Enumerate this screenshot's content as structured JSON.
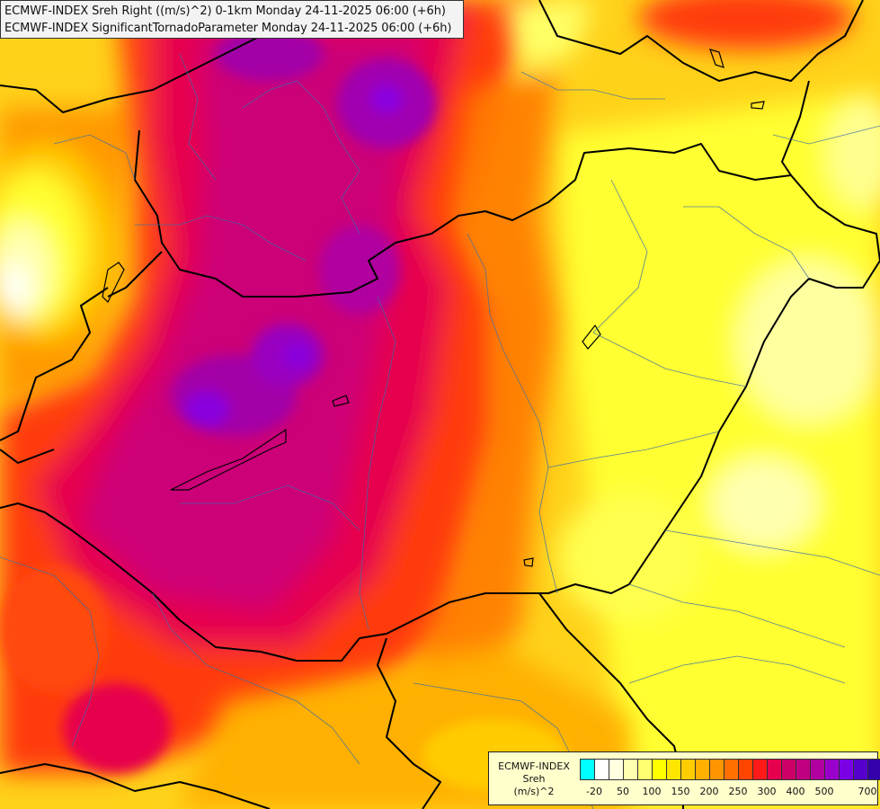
{
  "header": {
    "line1": "ECMWF-INDEX Sreh Right ((m/s)^2) 0-1km Monday 24-11-2025 06:00 (+6h)",
    "line2": "ECMWF-INDEX SignificantTornadoParameter Monday 24-11-2025 06:00 (+6h)"
  },
  "legend": {
    "title_lines": [
      "ECMWF-INDEX",
      "Sreh",
      "(m/s)^2"
    ],
    "colors": [
      "#00ffff",
      "#ffffff",
      "#ffffe0",
      "#ffffb0",
      "#ffff70",
      "#ffff00",
      "#ffe600",
      "#ffcc00",
      "#ffb000",
      "#ff9500",
      "#ff7000",
      "#ff4500",
      "#ff1a1a",
      "#e6004d",
      "#cc0066",
      "#c00080",
      "#b000a0",
      "#9900cc",
      "#7a00e6",
      "#5500cc",
      "#3300aa",
      "#1a0080"
    ],
    "ticks": [
      "-20",
      "50",
      "100",
      "150",
      "200",
      "250",
      "300",
      "400",
      "500",
      "700"
    ]
  }
}
